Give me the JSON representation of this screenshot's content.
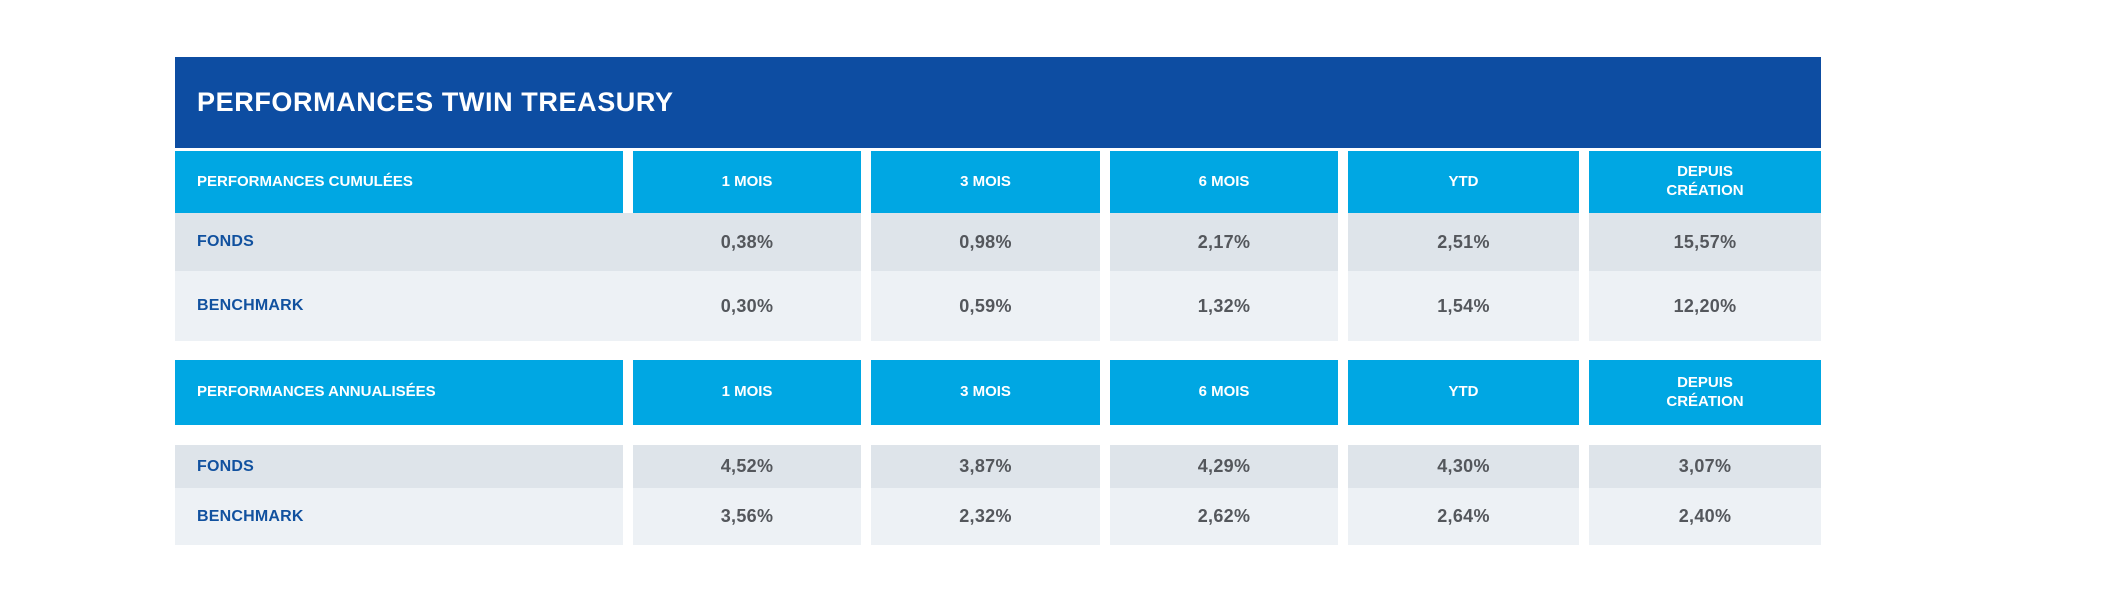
{
  "title": "PERFORMANCES TWIN TREASURY",
  "colors": {
    "title_bar": "#0d4da2",
    "header_cyan": "#00a7e3",
    "row_odd_bg": "#dee4ea",
    "row_even_bg": "#edf1f5",
    "label_text": "#11519f",
    "value_text": "#54575c"
  },
  "sections": [
    {
      "label": "PERFORMANCES CUMULÉES",
      "columns": [
        "1 MOIS",
        "3 MOIS",
        "6 MOIS",
        "YTD",
        "DEPUIS\nCRÉATION"
      ],
      "rows": [
        {
          "label": "FONDS",
          "values": [
            "0,38%",
            "0,98%",
            "2,17%",
            "2,51%",
            "15,57%"
          ]
        },
        {
          "label": "BENCHMARK",
          "values": [
            "0,30%",
            "0,59%",
            "1,32%",
            "1,54%",
            "12,20%"
          ]
        }
      ]
    },
    {
      "label": "PERFORMANCES ANNUALISÉES",
      "columns": [
        "1 MOIS",
        "3 MOIS",
        "6 MOIS",
        "YTD",
        "DEPUIS\nCRÉATION"
      ],
      "rows": [
        {
          "label": "FONDS",
          "values": [
            "4,52%",
            "3,87%",
            "4,29%",
            "4,30%",
            "3,07%"
          ]
        },
        {
          "label": "BENCHMARK",
          "values": [
            "3,56%",
            "2,32%",
            "2,62%",
            "2,64%",
            "2,40%"
          ]
        }
      ]
    }
  ]
}
